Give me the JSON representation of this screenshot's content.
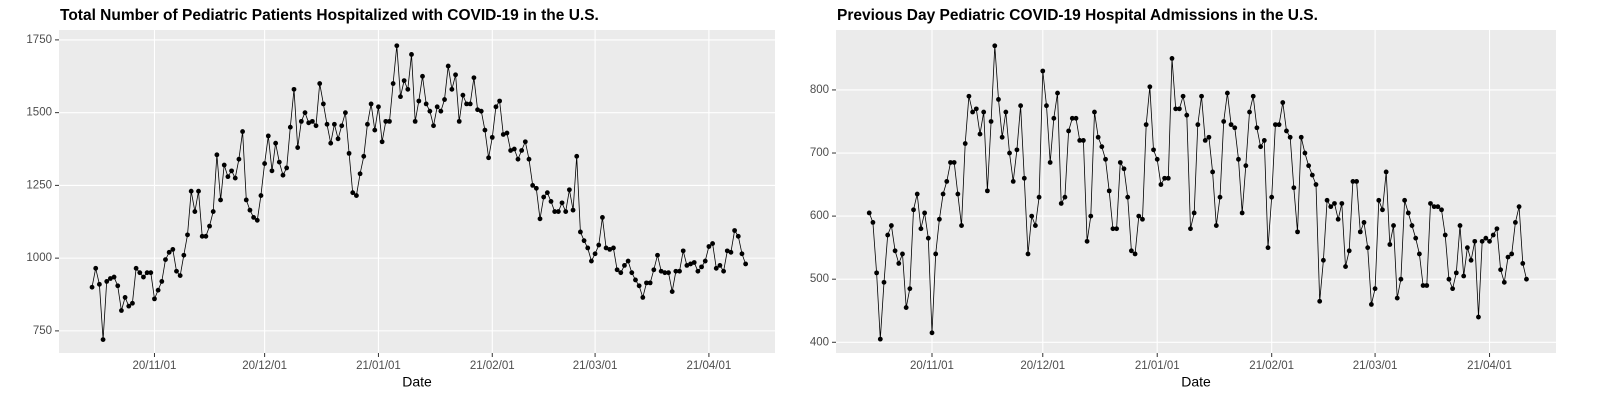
{
  "chart_data": [
    {
      "type": "line",
      "title": "Total Number of Pediatric Patients Hospitalized with COVID-19 in the U.S.",
      "x_label": "Date",
      "grid": true,
      "color": "#000000",
      "x": [
        "20/10/15",
        "20/10/16",
        "20/10/17",
        "20/10/18",
        "20/10/19",
        "20/10/20",
        "20/10/21",
        "20/10/22",
        "20/10/23",
        "20/10/24",
        "20/10/25",
        "20/10/26",
        "20/10/27",
        "20/10/28",
        "20/10/29",
        "20/10/30",
        "20/10/31",
        "20/11/01",
        "20/11/02",
        "20/11/03",
        "20/11/04",
        "20/11/05",
        "20/11/06",
        "20/11/07",
        "20/11/08",
        "20/11/09",
        "20/11/10",
        "20/11/11",
        "20/11/12",
        "20/11/13",
        "20/11/14",
        "20/11/15",
        "20/11/16",
        "20/11/17",
        "20/11/18",
        "20/11/19",
        "20/11/20",
        "20/11/21",
        "20/11/22",
        "20/11/23",
        "20/11/24",
        "20/11/25",
        "20/11/26",
        "20/11/27",
        "20/11/28",
        "20/11/29",
        "20/11/30",
        "20/12/01",
        "20/12/02",
        "20/12/03",
        "20/12/04",
        "20/12/05",
        "20/12/06",
        "20/12/07",
        "20/12/08",
        "20/12/09",
        "20/12/10",
        "20/12/11",
        "20/12/12",
        "20/12/13",
        "20/12/14",
        "20/12/15",
        "20/12/16",
        "20/12/17",
        "20/12/18",
        "20/12/19",
        "20/12/20",
        "20/12/21",
        "20/12/22",
        "20/12/23",
        "20/12/24",
        "20/12/25",
        "20/12/26",
        "20/12/27",
        "20/12/28",
        "20/12/29",
        "20/12/30",
        "20/12/31",
        "21/01/01",
        "21/01/02",
        "21/01/03",
        "21/01/04",
        "21/01/05",
        "21/01/06",
        "21/01/07",
        "21/01/08",
        "21/01/09",
        "21/01/10",
        "21/01/11",
        "21/01/12",
        "21/01/13",
        "21/01/14",
        "21/01/15",
        "21/01/16",
        "21/01/17",
        "21/01/18",
        "21/01/19",
        "21/01/20",
        "21/01/21",
        "21/01/22",
        "21/01/23",
        "21/01/24",
        "21/01/25",
        "21/01/26",
        "21/01/27",
        "21/01/28",
        "21/01/29",
        "21/01/30",
        "21/01/31",
        "21/02/01",
        "21/02/02",
        "21/02/03",
        "21/02/04",
        "21/02/05",
        "21/02/06",
        "21/02/07",
        "21/02/08",
        "21/02/09",
        "21/02/10",
        "21/02/11",
        "21/02/12",
        "21/02/13",
        "21/02/14",
        "21/02/15",
        "21/02/16",
        "21/02/17",
        "21/02/18",
        "21/02/19",
        "21/02/20",
        "21/02/21",
        "21/02/22",
        "21/02/23",
        "21/02/24",
        "21/02/25",
        "21/02/26",
        "21/02/27",
        "21/02/28",
        "21/03/01",
        "21/03/02",
        "21/03/03",
        "21/03/04",
        "21/03/05",
        "21/03/06",
        "21/03/07",
        "21/03/08",
        "21/03/09",
        "21/03/10",
        "21/03/11",
        "21/03/12",
        "21/03/13",
        "21/03/14",
        "21/03/15",
        "21/03/16",
        "21/03/17",
        "21/03/18",
        "21/03/19",
        "21/03/20",
        "21/03/21",
        "21/03/22",
        "21/03/23",
        "21/03/24",
        "21/03/25",
        "21/03/26",
        "21/03/27",
        "21/03/28",
        "21/03/29",
        "21/03/30",
        "21/03/31",
        "21/04/01",
        "21/04/02",
        "21/04/03",
        "21/04/04",
        "21/04/05",
        "21/04/06",
        "21/04/07",
        "21/04/08",
        "21/04/09",
        "21/04/10",
        "21/04/11"
      ],
      "values": [
        900,
        965,
        910,
        720,
        920,
        930,
        935,
        905,
        820,
        865,
        835,
        845,
        965,
        950,
        935,
        950,
        950,
        860,
        890,
        920,
        995,
        1020,
        1030,
        955,
        940,
        1010,
        1080,
        1230,
        1160,
        1230,
        1075,
        1075,
        1110,
        1160,
        1355,
        1200,
        1320,
        1280,
        1300,
        1275,
        1340,
        1435,
        1200,
        1165,
        1140,
        1130,
        1215,
        1325,
        1420,
        1300,
        1395,
        1330,
        1285,
        1310,
        1450,
        1580,
        1380,
        1470,
        1500,
        1465,
        1470,
        1455,
        1600,
        1530,
        1460,
        1395,
        1460,
        1410,
        1455,
        1500,
        1360,
        1225,
        1215,
        1290,
        1350,
        1460,
        1530,
        1440,
        1520,
        1400,
        1470,
        1470,
        1600,
        1730,
        1555,
        1610,
        1580,
        1700,
        1470,
        1540,
        1625,
        1530,
        1505,
        1455,
        1520,
        1505,
        1545,
        1660,
        1580,
        1630,
        1470,
        1560,
        1530,
        1530,
        1620,
        1510,
        1505,
        1440,
        1345,
        1415,
        1520,
        1540,
        1425,
        1430,
        1370,
        1375,
        1340,
        1370,
        1400,
        1340,
        1250,
        1240,
        1135,
        1210,
        1225,
        1195,
        1160,
        1160,
        1190,
        1160,
        1235,
        1165,
        1350,
        1090,
        1060,
        1035,
        990,
        1015,
        1045,
        1140,
        1035,
        1030,
        1035,
        960,
        950,
        975,
        990,
        950,
        925,
        905,
        865,
        915,
        915,
        960,
        1010,
        955,
        950,
        950,
        885,
        955,
        955,
        1025,
        975,
        980,
        985,
        955,
        970,
        990,
        1040,
        1050,
        965,
        975,
        955,
        1025,
        1020,
        1095,
        1075,
        1015,
        980
      ],
      "xlim": [
        "20/10/06",
        "21/04/19"
      ],
      "xticks": [
        "20/11/01",
        "20/12/01",
        "21/01/01",
        "21/02/01",
        "21/03/01",
        "21/04/01"
      ],
      "ylim": [
        674,
        1784
      ],
      "yticks": [
        750,
        1000,
        1250,
        1500,
        1750
      ]
    },
    {
      "type": "line",
      "title": "Previous Day Pediatric COVID-19 Hospital Admissions in the U.S.",
      "x_label": "Date",
      "grid": true,
      "color": "#000000",
      "x": [
        "20/10/15",
        "20/10/16",
        "20/10/17",
        "20/10/18",
        "20/10/19",
        "20/10/20",
        "20/10/21",
        "20/10/22",
        "20/10/23",
        "20/10/24",
        "20/10/25",
        "20/10/26",
        "20/10/27",
        "20/10/28",
        "20/10/29",
        "20/10/30",
        "20/10/31",
        "20/11/01",
        "20/11/02",
        "20/11/03",
        "20/11/04",
        "20/11/05",
        "20/11/06",
        "20/11/07",
        "20/11/08",
        "20/11/09",
        "20/11/10",
        "20/11/11",
        "20/11/12",
        "20/11/13",
        "20/11/14",
        "20/11/15",
        "20/11/16",
        "20/11/17",
        "20/11/18",
        "20/11/19",
        "20/11/20",
        "20/11/21",
        "20/11/22",
        "20/11/23",
        "20/11/24",
        "20/11/25",
        "20/11/26",
        "20/11/27",
        "20/11/28",
        "20/11/29",
        "20/11/30",
        "20/12/01",
        "20/12/02",
        "20/12/03",
        "20/12/04",
        "20/12/05",
        "20/12/06",
        "20/12/07",
        "20/12/08",
        "20/12/09",
        "20/12/10",
        "20/12/11",
        "20/12/12",
        "20/12/13",
        "20/12/14",
        "20/12/15",
        "20/12/16",
        "20/12/17",
        "20/12/18",
        "20/12/19",
        "20/12/20",
        "20/12/21",
        "20/12/22",
        "20/12/23",
        "20/12/24",
        "20/12/25",
        "20/12/26",
        "20/12/27",
        "20/12/28",
        "20/12/29",
        "20/12/30",
        "20/12/31",
        "21/01/01",
        "21/01/02",
        "21/01/03",
        "21/01/04",
        "21/01/05",
        "21/01/06",
        "21/01/07",
        "21/01/08",
        "21/01/09",
        "21/01/10",
        "21/01/11",
        "21/01/12",
        "21/01/13",
        "21/01/14",
        "21/01/15",
        "21/01/16",
        "21/01/17",
        "21/01/18",
        "21/01/19",
        "21/01/20",
        "21/01/21",
        "21/01/22",
        "21/01/23",
        "21/01/24",
        "21/01/25",
        "21/01/26",
        "21/01/27",
        "21/01/28",
        "21/01/29",
        "21/01/30",
        "21/01/31",
        "21/02/01",
        "21/02/02",
        "21/02/03",
        "21/02/04",
        "21/02/05",
        "21/02/06",
        "21/02/07",
        "21/02/08",
        "21/02/09",
        "21/02/10",
        "21/02/11",
        "21/02/12",
        "21/02/13",
        "21/02/14",
        "21/02/15",
        "21/02/16",
        "21/02/17",
        "21/02/18",
        "21/02/19",
        "21/02/20",
        "21/02/21",
        "21/02/22",
        "21/02/23",
        "21/02/24",
        "21/02/25",
        "21/02/26",
        "21/02/27",
        "21/02/28",
        "21/03/01",
        "21/03/02",
        "21/03/03",
        "21/03/04",
        "21/03/05",
        "21/03/06",
        "21/03/07",
        "21/03/08",
        "21/03/09",
        "21/03/10",
        "21/03/11",
        "21/03/12",
        "21/03/13",
        "21/03/14",
        "21/03/15",
        "21/03/16",
        "21/03/17",
        "21/03/18",
        "21/03/19",
        "21/03/20",
        "21/03/21",
        "21/03/22",
        "21/03/23",
        "21/03/24",
        "21/03/25",
        "21/03/26",
        "21/03/27",
        "21/03/28",
        "21/03/29",
        "21/03/30",
        "21/03/31",
        "21/04/01",
        "21/04/02",
        "21/04/03",
        "21/04/04",
        "21/04/05",
        "21/04/06",
        "21/04/07",
        "21/04/08",
        "21/04/09",
        "21/04/10",
        "21/04/11"
      ],
      "values": [
        605,
        590,
        510,
        405,
        495,
        570,
        585,
        545,
        525,
        540,
        455,
        485,
        610,
        635,
        580,
        605,
        565,
        415,
        540,
        595,
        635,
        655,
        685,
        685,
        635,
        585,
        715,
        790,
        765,
        770,
        730,
        765,
        640,
        750,
        870,
        785,
        725,
        765,
        700,
        655,
        705,
        775,
        660,
        540,
        600,
        585,
        630,
        830,
        775,
        685,
        755,
        795,
        620,
        630,
        735,
        755,
        755,
        720,
        720,
        560,
        600,
        765,
        725,
        710,
        690,
        640,
        580,
        580,
        685,
        675,
        630,
        545,
        540,
        600,
        595,
        745,
        805,
        705,
        690,
        650,
        660,
        660,
        850,
        770,
        770,
        790,
        760,
        580,
        605,
        745,
        790,
        720,
        725,
        670,
        585,
        630,
        750,
        795,
        745,
        740,
        690,
        605,
        680,
        765,
        790,
        740,
        710,
        720,
        550,
        630,
        745,
        745,
        780,
        735,
        725,
        645,
        575,
        725,
        700,
        680,
        665,
        650,
        465,
        530,
        625,
        615,
        620,
        595,
        620,
        520,
        545,
        655,
        655,
        575,
        590,
        550,
        460,
        485,
        625,
        610,
        670,
        555,
        585,
        470,
        500,
        625,
        605,
        585,
        565,
        540,
        490,
        490,
        620,
        615,
        615,
        610,
        570,
        500,
        485,
        510,
        585,
        505,
        550,
        530,
        560,
        440,
        560,
        565,
        560,
        570,
        580,
        515,
        495,
        535,
        540,
        590,
        615,
        525,
        500
      ],
      "xlim": [
        "20/10/06",
        "21/04/19"
      ],
      "xticks": [
        "20/11/01",
        "20/12/01",
        "21/01/01",
        "21/02/01",
        "21/03/01",
        "21/04/01"
      ],
      "ylim": [
        383,
        895
      ],
      "yticks": [
        400,
        500,
        600,
        700,
        800
      ]
    }
  ]
}
